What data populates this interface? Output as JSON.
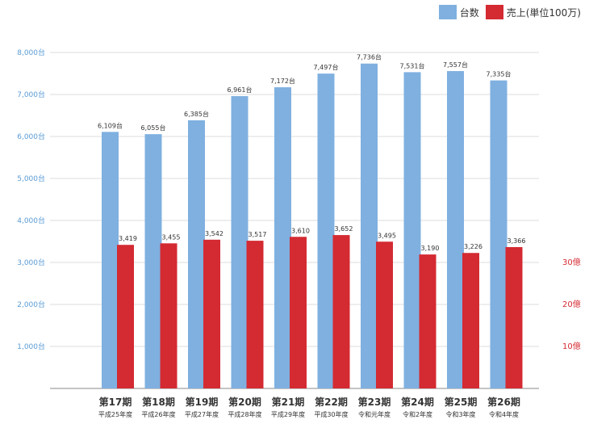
{
  "colors": {
    "units_series": "#7fb0e0",
    "sales_series": "#d42a32",
    "left_axis_text": "#5a9bd5",
    "right_axis_text": "#d42a32",
    "gridline": "#bbbbbb",
    "baseline": "#888888",
    "label_text": "#333333"
  },
  "chart_data": {
    "type": "bar",
    "categories": [
      "第17期",
      "第18期",
      "第19期",
      "第20期",
      "第21期",
      "第22期",
      "第23期",
      "第24期",
      "第25期",
      "第26期"
    ],
    "category_sublabels": [
      "平成25年度",
      "平成26年度",
      "平成27年度",
      "平成28年度",
      "平成29年度",
      "平成30年度",
      "令和元年度",
      "令和2年度",
      "令和3年度",
      "令和4年度"
    ],
    "series": [
      {
        "name": "台数",
        "values": [
          6109,
          6055,
          6385,
          6961,
          7172,
          7497,
          7736,
          7531,
          7557,
          7335
        ],
        "labels": [
          "6,109台",
          "6,055台",
          "6,385台",
          "6,961台",
          "7,172台",
          "7,497台",
          "7,736台",
          "7,531台",
          "7,557台",
          "7,335台"
        ],
        "axis": "left"
      },
      {
        "name": "売上(単位100万)",
        "values": [
          3419,
          3455,
          3542,
          3517,
          3610,
          3652,
          3495,
          3190,
          3226,
          3366
        ],
        "labels": [
          "3,419",
          "3,455",
          "3,542",
          "3,517",
          "3,610",
          "3,652",
          "3,495",
          "3,190",
          "3,226",
          "3,366"
        ],
        "axis": "right"
      }
    ],
    "left_axis": {
      "ylim": [
        0,
        8000
      ],
      "ticks": [
        1000,
        2000,
        3000,
        4000,
        5000,
        6000,
        7000,
        8000
      ],
      "tick_labels": [
        "1,000台",
        "2,000台",
        "3,000台",
        "4,000台",
        "5,000台",
        "6,000台",
        "7,000台",
        "8,000台"
      ]
    },
    "right_axis": {
      "ticks": [
        1000,
        2000,
        3000
      ],
      "tick_labels": [
        "10億",
        "20億",
        "30億"
      ]
    },
    "grid": true,
    "legend_position": "top-right"
  }
}
